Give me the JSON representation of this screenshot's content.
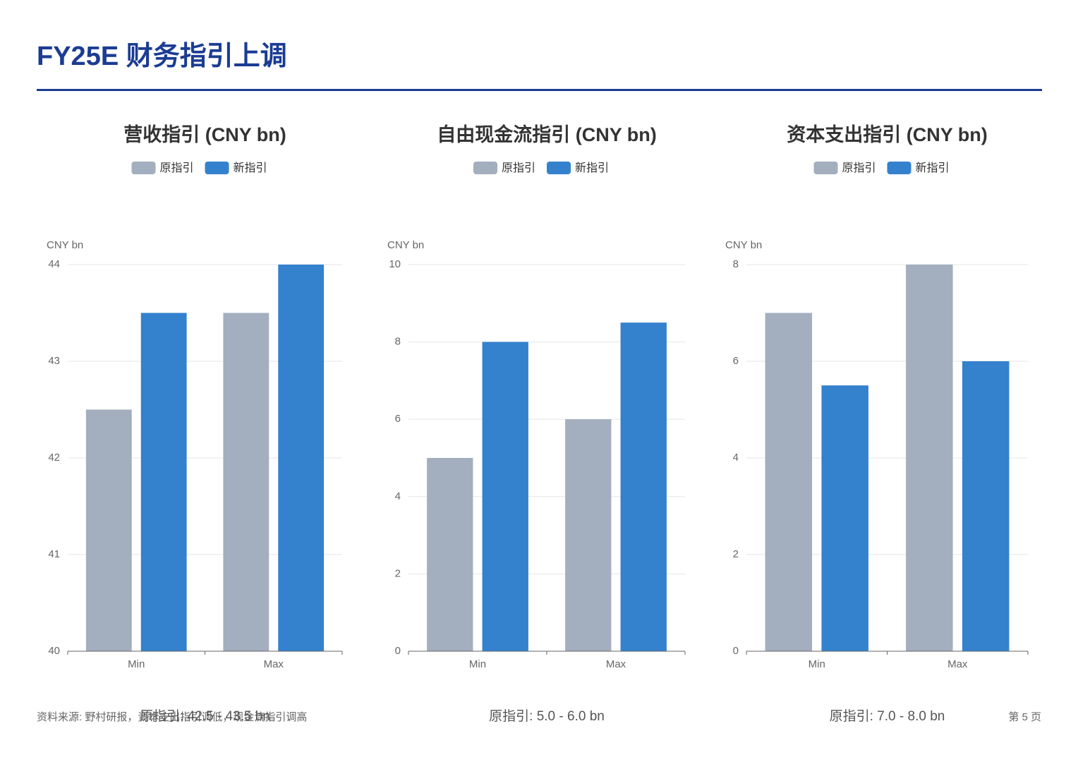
{
  "header": {
    "title": "FY25E 财务指引上调"
  },
  "chart_data": [
    {
      "type": "bar",
      "title": "营收指引 (CNY bn)",
      "y_label": "CNY bn",
      "categories": [
        "Min",
        "Max"
      ],
      "series": [
        {
          "name": "原指引",
          "color": "#a3afbf",
          "values": [
            42.5,
            43.5
          ]
        },
        {
          "name": "新指引",
          "color": "#3481cd",
          "values": [
            43.5,
            44
          ]
        }
      ],
      "ylim": [
        40,
        44
      ],
      "yticks": [
        40,
        41,
        42,
        43,
        44
      ],
      "grid": true,
      "note": "原指引: 42.5 - 43.5 bn"
    },
    {
      "type": "bar",
      "title": "自由现金流指引 (CNY bn)",
      "y_label": "CNY bn",
      "categories": [
        "Min",
        "Max"
      ],
      "series": [
        {
          "name": "原指引",
          "color": "#a3afbf",
          "values": [
            5,
            6
          ]
        },
        {
          "name": "新指引",
          "color": "#3481cd",
          "values": [
            8,
            8.5
          ]
        }
      ],
      "ylim": [
        0,
        10
      ],
      "yticks": [
        0,
        2,
        4,
        6,
        8,
        10
      ],
      "grid": true,
      "note": "原指引: 5.0 - 6.0 bn"
    },
    {
      "type": "bar",
      "title": "资本支出指引 (CNY bn)",
      "y_label": "CNY bn",
      "categories": [
        "Min",
        "Max"
      ],
      "series": [
        {
          "name": "原指引",
          "color": "#a3afbf",
          "values": [
            7,
            8
          ]
        },
        {
          "name": "新指引",
          "color": "#3481cd",
          "values": [
            5.5,
            6
          ]
        }
      ],
      "ylim": [
        0,
        8
      ],
      "yticks": [
        0,
        2,
        4,
        6,
        8
      ],
      "grid": true,
      "note": "原指引: 7.0 - 8.0 bn"
    }
  ],
  "footer": {
    "source": "资料来源: 野村研报，资本支出指引调低，现金流指引调高",
    "page": "第 5 页"
  }
}
